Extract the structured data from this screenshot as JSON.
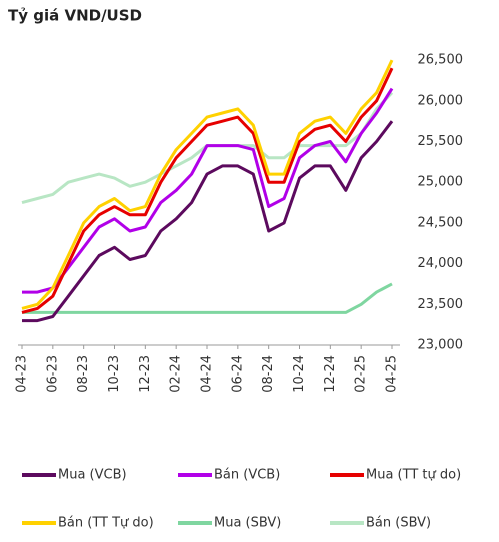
{
  "chart_data": {
    "type": "line",
    "title": "Tỷ giá VND/USD",
    "categories": [
      "04-23",
      null,
      "06-23",
      null,
      "08-23",
      null,
      "10-23",
      null,
      "12-23",
      null,
      "02-24",
      null,
      "04-24",
      null,
      "06-24",
      null,
      "08-24",
      null,
      "10-24",
      null,
      "12-24",
      null,
      "02-25",
      null,
      "04-25"
    ],
    "series": [
      {
        "name": "Mua (VCB)",
        "color": "#5c0a5e",
        "values": [
          23300,
          23300,
          23350,
          23600,
          23850,
          24100,
          24200,
          24050,
          24100,
          24400,
          24550,
          24750,
          25100,
          25200,
          25200,
          25100,
          24400,
          24500,
          25050,
          25200,
          25200,
          24900,
          25300,
          25500,
          25750
        ]
      },
      {
        "name": "Bán (VCB)",
        "color": "#b100e8",
        "values": [
          23650,
          23650,
          23700,
          23950,
          24200,
          24450,
          24550,
          24400,
          24450,
          24750,
          24900,
          25100,
          25450,
          25450,
          25450,
          25400,
          24700,
          24800,
          25300,
          25450,
          25500,
          25250,
          25600,
          25850,
          26150
        ]
      },
      {
        "name": "Mua (TT tự do)",
        "color": "#e60000",
        "values": [
          23400,
          23450,
          23600,
          24000,
          24400,
          24600,
          24700,
          24600,
          24600,
          25000,
          25300,
          25500,
          25700,
          25750,
          25800,
          25600,
          25000,
          25000,
          25500,
          25650,
          25700,
          25500,
          25800,
          26000,
          26400
        ]
      },
      {
        "name": "Bán (TT Tự do)",
        "color": "#ffd100",
        "values": [
          23450,
          23500,
          23700,
          24100,
          24500,
          24700,
          24800,
          24650,
          24700,
          25100,
          25400,
          25600,
          25800,
          25850,
          25900,
          25700,
          25100,
          25100,
          25600,
          25750,
          25800,
          25600,
          25900,
          26100,
          26500
        ]
      },
      {
        "name": "Mua  (SBV)",
        "color": "#7fd6a0",
        "values": [
          23400,
          23400,
          23400,
          23400,
          23400,
          23400,
          23400,
          23400,
          23400,
          23400,
          23400,
          23400,
          23400,
          23400,
          23400,
          23400,
          23400,
          23400,
          23400,
          23400,
          23400,
          23400,
          23500,
          23650,
          23750
        ]
      },
      {
        "name": "Bán  (SBV)",
        "color": "#b8e6c4",
        "values": [
          24750,
          24800,
          24850,
          25000,
          25050,
          25100,
          25050,
          24950,
          25000,
          25100,
          25200,
          25300,
          25450,
          25450,
          25450,
          25450,
          25300,
          25300,
          25450,
          25450,
          25450,
          25450,
          25600,
          25900,
          26100
        ]
      }
    ],
    "ylim": [
      23000,
      26700
    ],
    "yticks": [
      {
        "value": 23000,
        "label": "23,000"
      },
      {
        "value": 23500,
        "label": "23,500"
      },
      {
        "value": 24000,
        "label": "24,000"
      },
      {
        "value": 24500,
        "label": "24,500"
      },
      {
        "value": 25000,
        "label": "25,000"
      },
      {
        "value": 25500,
        "label": "25,500"
      },
      {
        "value": 26000,
        "label": "26,000"
      },
      {
        "value": 26500,
        "label": "26,500"
      }
    ],
    "grid": false
  }
}
